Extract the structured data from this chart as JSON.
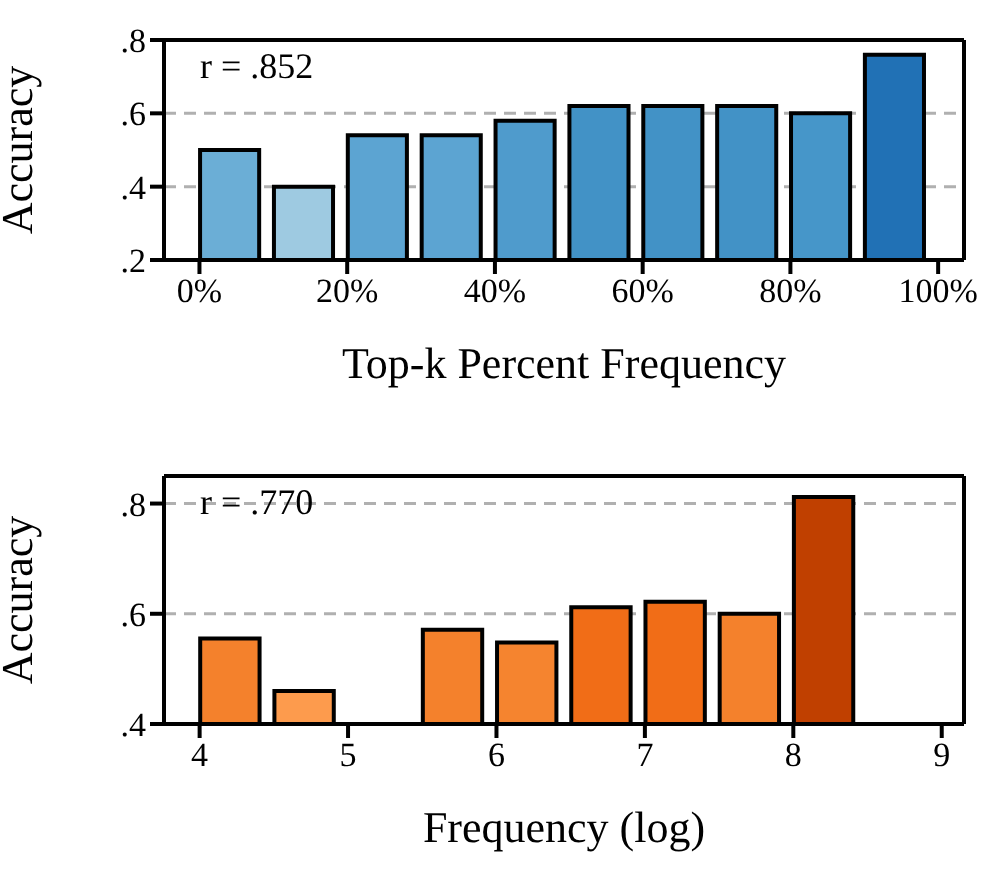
{
  "chart_data": [
    {
      "type": "bar",
      "x": [
        4,
        14,
        24,
        34,
        44,
        54,
        64,
        74,
        84,
        94
      ],
      "values": [
        0.5,
        0.4,
        0.54,
        0.54,
        0.58,
        0.62,
        0.62,
        0.62,
        0.6,
        0.76
      ],
      "colors": [
        "#6baed6",
        "#9ecae1",
        "#5ca4d2",
        "#5ca4d2",
        "#4f9bcc",
        "#4292c6",
        "#4292c6",
        "#4292c6",
        "#4696c9",
        "#2171b5"
      ],
      "xlim": [
        -4.8,
        103.5
      ],
      "xticks": [
        {
          "value": 0,
          "label": "0%"
        },
        {
          "value": 20,
          "label": "20%"
        },
        {
          "value": 40,
          "label": "40%"
        },
        {
          "value": 60,
          "label": "60%"
        },
        {
          "value": 80,
          "label": "80%"
        },
        {
          "value": 100,
          "label": "100%"
        }
      ],
      "ylim": [
        0.2,
        0.8
      ],
      "yticks": [
        {
          "value": 0.2,
          "label": ".2"
        },
        {
          "value": 0.4,
          "label": ".4"
        },
        {
          "value": 0.6,
          "label": ".6"
        },
        {
          "value": 0.8,
          "label": ".8"
        }
      ],
      "xlabel": "Top-k Percent Frequency",
      "ylabel": "Accuracy",
      "annotations": [
        "r = .852"
      ],
      "grid": "y"
    },
    {
      "type": "bar",
      "x": [
        4.2,
        4.7,
        5.2,
        5.7,
        6.2,
        6.7,
        7.2,
        7.7,
        8.2,
        8.7
      ],
      "values": [
        0.555,
        0.46,
        0.4,
        0.571,
        0.548,
        0.612,
        0.622,
        0.6,
        0.812,
        0.4
      ],
      "colors": [
        "#f4812c",
        "#fd9b4d",
        "#f4812c",
        "#f4812c",
        "#f5842f",
        "#f16d17",
        "#f16d17",
        "#f4812c",
        "#c04000",
        "#f4812c"
      ],
      "xlim": [
        3.76,
        9.15
      ],
      "xticks": [
        4,
        5,
        6,
        7,
        8,
        9
      ],
      "ylim": [
        0.4,
        0.85
      ],
      "yticks": [
        {
          "value": 0.4,
          "label": ".4"
        },
        {
          "value": 0.6,
          "label": ".6"
        },
        {
          "value": 0.8,
          "label": ".8"
        }
      ],
      "xlabel": "Frequency (log)",
      "ylabel": "Accuracy",
      "annotations": [
        "r = .770"
      ],
      "grid": "y"
    }
  ]
}
